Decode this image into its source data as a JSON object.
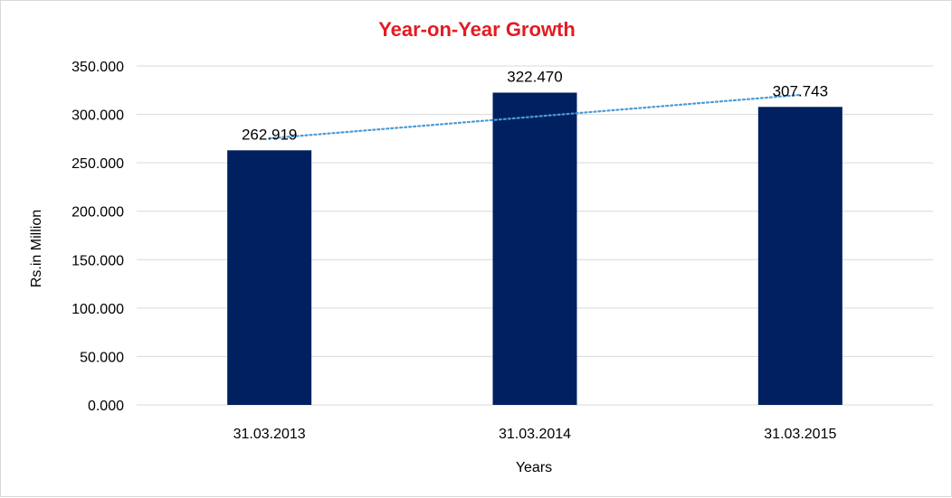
{
  "chart_data": {
    "type": "bar",
    "title": "Year-on-Year Growth",
    "xlabel": "Years",
    "ylabel": "Rs.in Million",
    "categories": [
      "31.03.2013",
      "31.03.2014",
      "31.03.2015"
    ],
    "values": [
      262.919,
      322.47,
      307.743
    ],
    "value_labels": [
      "262.919",
      "322.470",
      "307.743"
    ],
    "ylim": [
      0,
      350
    ],
    "yticks": [
      0,
      50,
      100,
      150,
      200,
      250,
      300,
      350
    ],
    "ytick_labels": [
      "0.000",
      "50.000",
      "100.000",
      "150.000",
      "200.000",
      "250.000",
      "300.000",
      "350.000"
    ],
    "trendline": {
      "type": "linear",
      "style": "dotted"
    },
    "grid": true,
    "legend": "none",
    "colors": {
      "bar": "#002060",
      "title": "#e31b23",
      "trendline": "#4a9bd5",
      "gridline": "#d9d9d9"
    }
  }
}
